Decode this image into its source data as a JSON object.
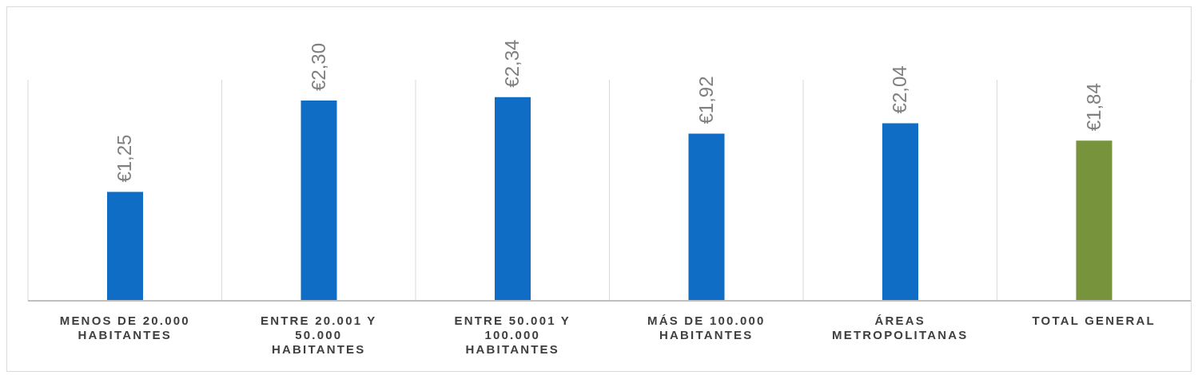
{
  "chart_data": {
    "type": "bar",
    "categories": [
      "MENOS DE 20.000 HABITANTES",
      "ENTRE 20.001 Y 50.000 HABITANTES",
      "ENTRE 50.001 Y 100.000 HABITANTES",
      "MÁS DE 100.000 HABITANTES",
      "ÁREAS METROPOLITANAS",
      "TOTAL GENERAL"
    ],
    "values": [
      1.25,
      2.3,
      2.34,
      1.92,
      2.04,
      1.84
    ],
    "colors": [
      "#0f6dc6",
      "#0f6dc6",
      "#0f6dc6",
      "#0f6dc6",
      "#0f6dc6",
      "#77933c"
    ],
    "value_labels": [
      "€1,25",
      "€2,30",
      "€2,34",
      "€1,92",
      "€2,04",
      "€1,84"
    ],
    "grid": "x",
    "legend": false
  }
}
